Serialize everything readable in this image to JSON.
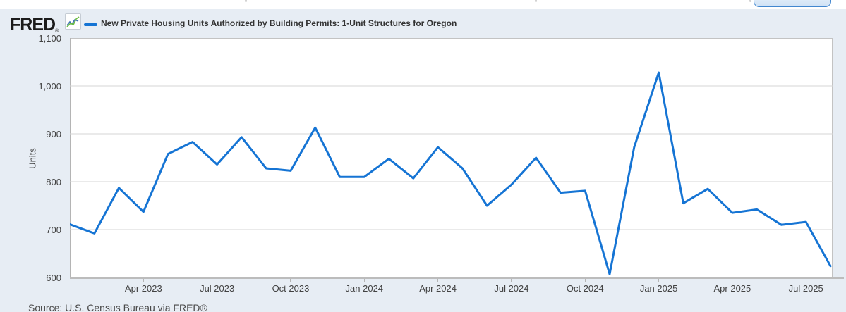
{
  "header": {
    "logo_text": "FRED",
    "registered_mark": "®",
    "logo_icon": "line-chart-icon",
    "legend": {
      "series_label": "New Private Housing Units Authorized by Building Permits: 1-Unit Structures for Oregon"
    }
  },
  "footer": {
    "source": "Source: U.S. Census Bureau via FRED®"
  },
  "colors": {
    "line": "#1574d4",
    "grid": "#d4d4d4",
    "frame": "#c3c3c3",
    "panel_bg": "#e7edf4",
    "button_border": "#4287cf",
    "logo_icon_blue": "#3d6fb5",
    "logo_icon_green": "#6cbe45"
  },
  "chart_data": {
    "type": "line",
    "title": "New Private Housing Units Authorized by Building Permits: 1-Unit Structures for Oregon",
    "ylabel": "Units",
    "xlabel": "",
    "ylim": [
      600,
      1100
    ],
    "grid": true,
    "legend_position": "top-left",
    "line_color": "#1574d4",
    "grid_color": "#d4d4d4",
    "x": [
      "Jan 2023",
      "Feb 2023",
      "Mar 2023",
      "Apr 2023",
      "May 2023",
      "Jun 2023",
      "Jul 2023",
      "Aug 2023",
      "Sep 2023",
      "Oct 2023",
      "Nov 2023",
      "Dec 2023",
      "Jan 2024",
      "Feb 2024",
      "Mar 2024",
      "Apr 2024",
      "May 2024",
      "Jun 2024",
      "Jul 2024",
      "Aug 2024",
      "Sep 2024",
      "Oct 2024",
      "Nov 2024",
      "Dec 2024",
      "Jan 2025",
      "Feb 2025",
      "Mar 2025",
      "Apr 2025",
      "May 2025",
      "Jun 2025",
      "Jul 2025",
      "Aug 2025"
    ],
    "values": [
      711,
      692,
      787,
      737,
      858,
      883,
      836,
      893,
      828,
      823,
      913,
      810,
      810,
      848,
      807,
      872,
      828,
      750,
      794,
      850,
      777,
      781,
      607,
      872,
      1028,
      755,
      785,
      735,
      742,
      710,
      716,
      624
    ],
    "y_ticks": [
      {
        "value": 1100,
        "label": "1,100"
      },
      {
        "value": 1000,
        "label": "1,000"
      },
      {
        "value": 900,
        "label": "900"
      },
      {
        "value": 800,
        "label": "800"
      },
      {
        "value": 700,
        "label": "700"
      },
      {
        "value": 600,
        "label": "600"
      }
    ],
    "x_ticks": [
      {
        "month_index": 3,
        "label": "Apr 2023"
      },
      {
        "month_index": 6,
        "label": "Jul 2023"
      },
      {
        "month_index": 9,
        "label": "Oct 2023"
      },
      {
        "month_index": 12,
        "label": "Jan 2024"
      },
      {
        "month_index": 15,
        "label": "Apr 2024"
      },
      {
        "month_index": 18,
        "label": "Jul 2024"
      },
      {
        "month_index": 21,
        "label": "Oct 2024"
      },
      {
        "month_index": 24,
        "label": "Jan 2025"
      },
      {
        "month_index": 27,
        "label": "Apr 2025"
      },
      {
        "month_index": 30,
        "label": "Jul 2025"
      }
    ]
  }
}
